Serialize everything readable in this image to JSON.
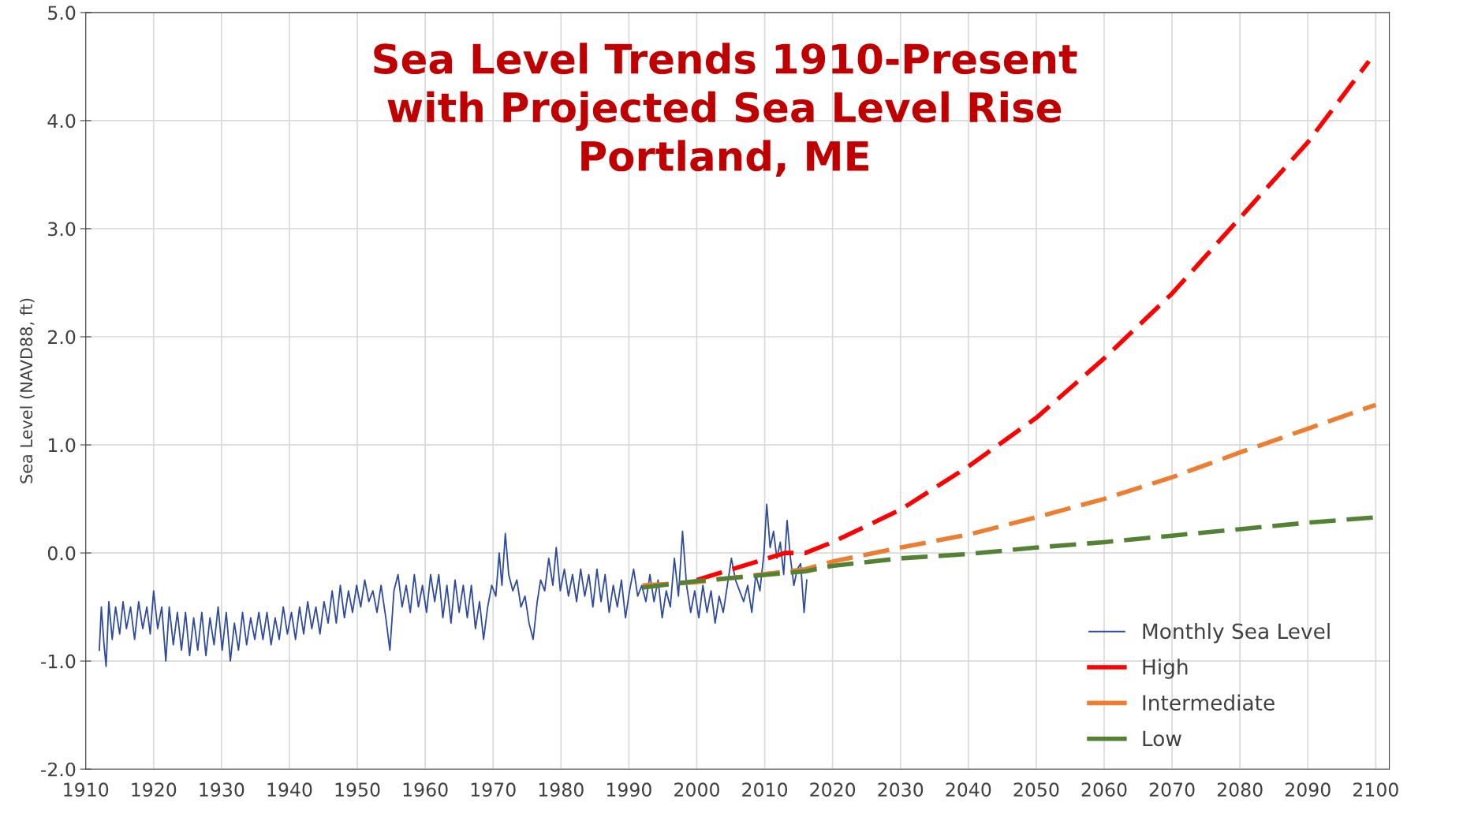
{
  "chart_data": {
    "type": "line",
    "title": "Sea Level Trends 1910-Present\nwith Projected Sea Level Rise\nPortland, ME",
    "ylabel": "Sea Level (NAVD88, ft)",
    "xlim": [
      1910,
      2102
    ],
    "xticks": [
      1910,
      1920,
      1930,
      1940,
      1950,
      1960,
      1970,
      1980,
      1990,
      2000,
      2010,
      2020,
      2030,
      2040,
      2050,
      2060,
      2070,
      2080,
      2090,
      2100
    ],
    "ylim": [
      -2,
      5
    ],
    "yticks": [
      {
        "value": -2,
        "label": "-2.0"
      },
      {
        "value": -1,
        "label": "-1.0"
      },
      {
        "value": 0,
        "label": "0.0"
      },
      {
        "value": 1,
        "label": "1.0"
      },
      {
        "value": 2,
        "label": "2.0"
      },
      {
        "value": 3,
        "label": "3.0"
      },
      {
        "value": 4,
        "label": "4.0"
      },
      {
        "value": 5,
        "label": "5.0"
      }
    ],
    "grid": true,
    "legend": "bottom right",
    "series": [
      {
        "name": "Monthly Sea Level",
        "color": "#2f4b9c",
        "line_style": "solid",
        "x": [
          1912.0,
          1912.3,
          1912.7,
          1913.0,
          1913.4,
          1913.9,
          1914.4,
          1915.0,
          1915.5,
          1916.0,
          1916.6,
          1917.2,
          1917.8,
          1918.4,
          1919.0,
          1919.5,
          1920.0,
          1920.6,
          1921.2,
          1921.8,
          1922.3,
          1922.9,
          1923.5,
          1924.1,
          1924.7,
          1925.3,
          1925.9,
          1926.5,
          1927.1,
          1927.7,
          1928.3,
          1928.9,
          1929.5,
          1930.1,
          1930.7,
          1931.3,
          1931.9,
          1932.5,
          1933.1,
          1933.7,
          1934.3,
          1934.9,
          1935.5,
          1936.1,
          1936.7,
          1937.3,
          1937.9,
          1938.5,
          1939.1,
          1939.7,
          1940.3,
          1940.9,
          1941.5,
          1942.1,
          1942.7,
          1943.3,
          1943.9,
          1944.5,
          1945.1,
          1945.7,
          1946.3,
          1946.9,
          1947.5,
          1948.1,
          1948.7,
          1949.3,
          1949.9,
          1950.5,
          1951.1,
          1951.7,
          1952.3,
          1952.9,
          1953.5,
          1954.2,
          1954.8,
          1955.4,
          1956.0,
          1956.6,
          1957.2,
          1957.8,
          1958.4,
          1959.0,
          1959.6,
          1960.2,
          1960.8,
          1961.4,
          1962.0,
          1962.6,
          1963.2,
          1963.8,
          1964.4,
          1965.0,
          1965.6,
          1966.2,
          1966.8,
          1967.4,
          1968.0,
          1968.6,
          1969.2,
          1969.8,
          1970.4,
          1970.9,
          1971.3,
          1971.8,
          1972.3,
          1972.9,
          1973.5,
          1974.1,
          1974.7,
          1975.3,
          1975.9,
          1976.5,
          1977.0,
          1977.6,
          1978.2,
          1978.8,
          1979.3,
          1979.9,
          1980.5,
          1981.1,
          1981.7,
          1982.3,
          1982.9,
          1983.5,
          1984.1,
          1984.7,
          1985.3,
          1985.9,
          1986.5,
          1987.1,
          1987.7,
          1988.3,
          1988.9,
          1989.5,
          1990.1,
          1990.7,
          1991.3,
          1991.9,
          1992.5,
          1993.1,
          1993.7,
          1994.3,
          1994.9,
          1995.5,
          1996.1,
          1996.7,
          1997.3,
          1997.9,
          1998.5,
          1999.1,
          1999.7,
          2000.3,
          2000.9,
          2001.5,
          2002.1,
          2002.7,
          2003.3,
          2003.9,
          2004.5,
          2005.1,
          2005.7,
          2006.3,
          2006.9,
          2007.5,
          2008.1,
          2008.7,
          2009.3,
          2009.9,
          2010.3,
          2010.8,
          2011.3,
          2011.8,
          2012.3,
          2012.8,
          2013.3,
          2013.8,
          2014.3,
          2014.8,
          2015.3,
          2015.8,
          2016.2
        ],
        "values": [
          -0.9,
          -0.5,
          -0.85,
          -1.05,
          -0.45,
          -0.8,
          -0.5,
          -0.75,
          -0.45,
          -0.7,
          -0.5,
          -0.8,
          -0.45,
          -0.7,
          -0.5,
          -0.75,
          -0.35,
          -0.7,
          -0.5,
          -1.0,
          -0.5,
          -0.85,
          -0.55,
          -0.9,
          -0.55,
          -0.95,
          -0.6,
          -0.9,
          -0.55,
          -0.95,
          -0.6,
          -0.85,
          -0.5,
          -0.9,
          -0.55,
          -1.0,
          -0.65,
          -0.9,
          -0.55,
          -0.85,
          -0.6,
          -0.8,
          -0.55,
          -0.8,
          -0.55,
          -0.85,
          -0.6,
          -0.8,
          -0.5,
          -0.75,
          -0.55,
          -0.8,
          -0.5,
          -0.75,
          -0.45,
          -0.7,
          -0.5,
          -0.75,
          -0.45,
          -0.65,
          -0.35,
          -0.65,
          -0.3,
          -0.6,
          -0.35,
          -0.55,
          -0.3,
          -0.5,
          -0.25,
          -0.45,
          -0.35,
          -0.55,
          -0.3,
          -0.6,
          -0.9,
          -0.35,
          -0.2,
          -0.5,
          -0.3,
          -0.55,
          -0.2,
          -0.5,
          -0.3,
          -0.55,
          -0.2,
          -0.45,
          -0.2,
          -0.6,
          -0.3,
          -0.65,
          -0.25,
          -0.55,
          -0.3,
          -0.6,
          -0.3,
          -0.7,
          -0.45,
          -0.8,
          -0.5,
          -0.3,
          -0.4,
          0.0,
          -0.3,
          0.18,
          -0.2,
          -0.35,
          -0.25,
          -0.5,
          -0.4,
          -0.65,
          -0.8,
          -0.45,
          -0.25,
          -0.35,
          -0.05,
          -0.3,
          0.05,
          -0.35,
          -0.15,
          -0.4,
          -0.2,
          -0.45,
          -0.15,
          -0.4,
          -0.2,
          -0.5,
          -0.15,
          -0.45,
          -0.2,
          -0.55,
          -0.3,
          -0.5,
          -0.25,
          -0.6,
          -0.35,
          -0.15,
          -0.4,
          -0.3,
          -0.45,
          -0.2,
          -0.45,
          -0.25,
          -0.6,
          -0.35,
          -0.5,
          -0.05,
          -0.4,
          0.2,
          -0.3,
          -0.55,
          -0.35,
          -0.6,
          -0.3,
          -0.55,
          -0.35,
          -0.65,
          -0.4,
          -0.55,
          -0.3,
          -0.05,
          -0.25,
          -0.35,
          -0.45,
          -0.3,
          -0.55,
          -0.2,
          -0.35,
          0.0,
          0.45,
          0.05,
          0.2,
          -0.05,
          0.1,
          -0.2,
          0.3,
          -0.05,
          -0.3,
          -0.15,
          -0.1,
          -0.55,
          -0.25
        ]
      },
      {
        "name": "High",
        "color": "#ff0000",
        "line_style": "dashed",
        "x": [
          2000,
          2013,
          2016,
          2020,
          2030,
          2040,
          2050,
          2060,
          2070,
          2080,
          2090,
          2099
        ],
        "values": [
          -0.25,
          0.0,
          0.0,
          0.1,
          0.4,
          0.8,
          1.25,
          1.8,
          2.4,
          3.1,
          3.8,
          4.55
        ]
      },
      {
        "name": "Intermediate",
        "color": "#ed7d31",
        "line_style": "dashed",
        "x": [
          1992,
          2000,
          2016,
          2020,
          2030,
          2040,
          2050,
          2060,
          2070,
          2080,
          2090,
          2100
        ],
        "values": [
          -0.3,
          -0.27,
          -0.15,
          -0.08,
          0.05,
          0.17,
          0.33,
          0.5,
          0.7,
          0.93,
          1.15,
          1.37
        ]
      },
      {
        "name": "Low",
        "color": "#548235",
        "line_style": "dashed",
        "x": [
          1992,
          2000,
          2016,
          2020,
          2030,
          2040,
          2050,
          2060,
          2070,
          2080,
          2090,
          2100
        ],
        "values": [
          -0.32,
          -0.26,
          -0.17,
          -0.12,
          -0.05,
          -0.01,
          0.05,
          0.1,
          0.16,
          0.22,
          0.28,
          0.33
        ]
      }
    ]
  }
}
